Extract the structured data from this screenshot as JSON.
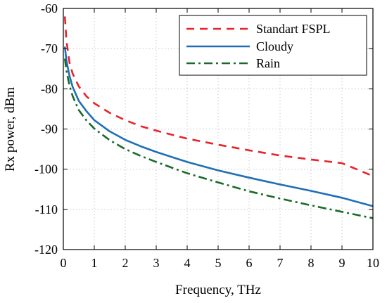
{
  "chart_data": {
    "type": "line",
    "title": "",
    "xlabel": "Frequency, THz",
    "ylabel": "Rx power, dBm",
    "xlim": [
      0,
      10
    ],
    "ylim": [
      -120,
      -60
    ],
    "xticks": [
      0,
      1,
      2,
      3,
      4,
      5,
      6,
      7,
      8,
      9,
      10
    ],
    "yticks": [
      -60,
      -70,
      -80,
      -90,
      -100,
      -110,
      -120
    ],
    "grid": true,
    "legend_position": "top-right",
    "series": [
      {
        "name": "Standart FSPL",
        "color": "#e8232a",
        "dash": "dashed",
        "x": [
          0.05,
          0.1,
          0.2,
          0.3,
          0.5,
          0.75,
          1,
          1.5,
          2,
          2.5,
          3,
          4,
          5,
          6,
          7,
          8,
          9,
          10
        ],
        "y": [
          -62,
          -68,
          -73.5,
          -76.2,
          -79.4,
          -81.9,
          -83.6,
          -86.0,
          -87.8,
          -89.3,
          -90.4,
          -92.4,
          -93.9,
          -95.3,
          -96.6,
          -97.6,
          -98.5,
          -101.7
        ]
      },
      {
        "name": "Cloudy",
        "color": "#1f6fb5",
        "dash": "solid",
        "x": [
          0.05,
          0.1,
          0.2,
          0.3,
          0.5,
          0.75,
          1,
          1.5,
          2,
          2.5,
          3,
          4,
          5,
          6,
          7,
          8,
          9,
          10
        ],
        "y": [
          -69.5,
          -73.0,
          -76.8,
          -79.5,
          -83.0,
          -85.6,
          -87.8,
          -90.6,
          -92.7,
          -94.3,
          -95.7,
          -98.2,
          -100.3,
          -102.1,
          -103.8,
          -105.4,
          -107.1,
          -109.2
        ]
      },
      {
        "name": "Rain",
        "color": "#1a6b2a",
        "dash": "dashdot",
        "x": [
          0.05,
          0.1,
          0.2,
          0.3,
          0.5,
          0.75,
          1,
          1.5,
          2,
          2.5,
          3,
          4,
          5,
          6,
          7,
          8,
          9,
          10
        ],
        "y": [
          -72.5,
          -75.5,
          -79.2,
          -81.8,
          -85.3,
          -87.9,
          -89.9,
          -92.8,
          -95.0,
          -96.7,
          -98.2,
          -101.0,
          -103.3,
          -105.5,
          -107.3,
          -109.0,
          -110.6,
          -112.2
        ]
      }
    ]
  }
}
